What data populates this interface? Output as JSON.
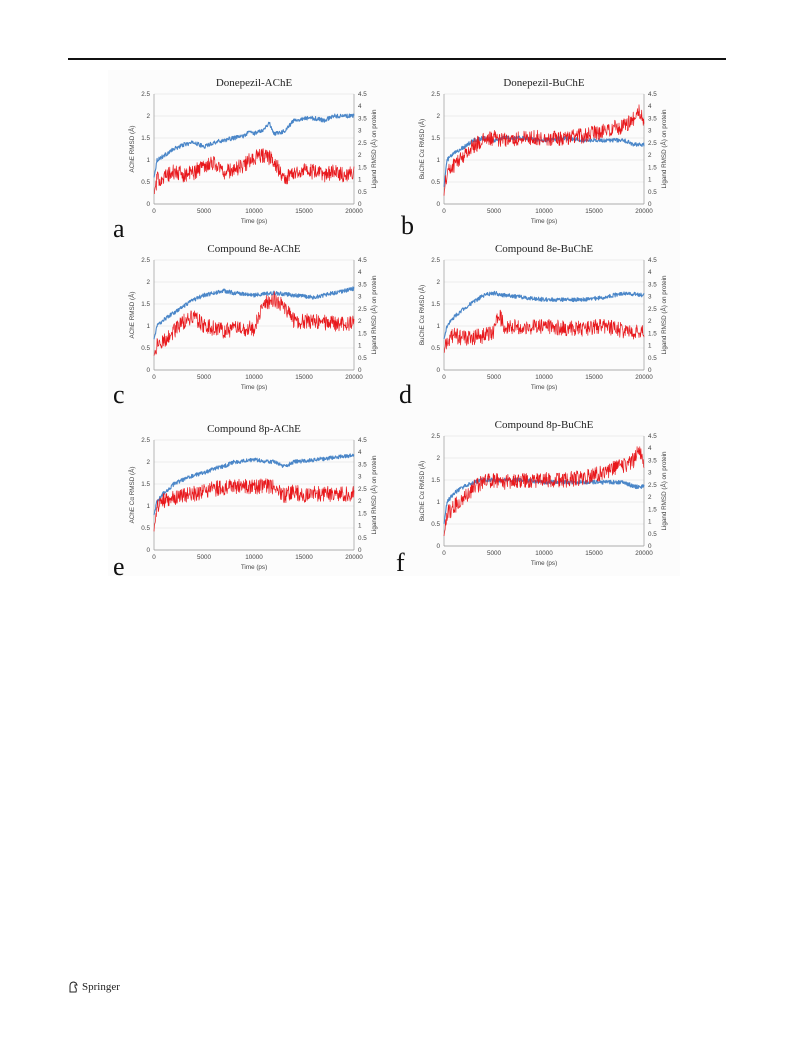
{
  "footer": {
    "publisher": "Springer",
    "logo_icon": "springer-horse-icon"
  },
  "series_colors": {
    "protein": "#4a86c8",
    "ligand": "#e8181c"
  },
  "chart_data": [
    {
      "type": "line",
      "panel": "a",
      "title": "Donepezil-AChE",
      "xlabel": "Time (ps)",
      "ylabel": "AChE RMSD (Å)",
      "y2label": "Ligand RMSD (Å) on protein",
      "xlim": [
        0,
        20000
      ],
      "ylim": [
        0,
        2.5
      ],
      "y2lim": [
        0,
        4.5
      ],
      "xticks": [
        "0",
        "5000",
        "10000",
        "15000",
        "20000"
      ],
      "yticks": [
        "0",
        "0.5",
        "1",
        "1.5",
        "2",
        "2.5"
      ],
      "y2ticks": [
        "0",
        "0.5",
        "1",
        "1.5",
        "2",
        "2.5",
        "3",
        "3.5",
        "4",
        "4.5"
      ],
      "grid": true,
      "series": [
        {
          "axis": "left",
          "color": "protein",
          "x": [
            0,
            300,
            1000,
            2000,
            3000,
            4000,
            5000,
            6000,
            7000,
            8000,
            9000,
            9600,
            10000,
            11000,
            11500,
            12000,
            13000,
            14000,
            15000,
            16000,
            17000,
            18000,
            19000,
            20000
          ],
          "y": [
            0.6,
            1.0,
            1.1,
            1.25,
            1.35,
            1.4,
            1.3,
            1.4,
            1.45,
            1.5,
            1.55,
            1.65,
            1.6,
            1.7,
            1.85,
            1.6,
            1.65,
            1.9,
            1.95,
            1.95,
            1.9,
            2.0,
            2.0,
            2.0
          ]
        },
        {
          "axis": "right",
          "color": "ligand",
          "x": [
            0,
            300,
            1000,
            2000,
            3000,
            4000,
            5000,
            6000,
            7000,
            8000,
            9000,
            10000,
            11000,
            12000,
            13000,
            14000,
            15000,
            16000,
            17000,
            18000,
            19000,
            20000
          ],
          "y": [
            0.4,
            1.0,
            1.1,
            1.3,
            1.2,
            1.3,
            1.6,
            1.7,
            1.3,
            1.4,
            1.6,
            1.9,
            2.0,
            1.8,
            1.0,
            1.3,
            1.4,
            1.3,
            1.2,
            1.3,
            1.2,
            1.3
          ]
        }
      ]
    },
    {
      "type": "line",
      "panel": "b",
      "title": "Donepezil-BuChE",
      "xlabel": "Time (ps)",
      "ylabel": "BuChE Cα RMSD (Å)",
      "y2label": "Ligand RMSD (Å) on protein",
      "xlim": [
        0,
        20000
      ],
      "ylim": [
        0,
        2.5
      ],
      "y2lim": [
        0,
        4.5
      ],
      "xticks": [
        "0",
        "5000",
        "10000",
        "15000",
        "20000"
      ],
      "yticks": [
        "0",
        "0.5",
        "1",
        "1.5",
        "2",
        "2.5"
      ],
      "y2ticks": [
        "0",
        "0.5",
        "1",
        "1.5",
        "2",
        "2.5",
        "3",
        "3.5",
        "4",
        "4.5"
      ],
      "grid": true,
      "series": [
        {
          "axis": "left",
          "color": "protein",
          "x": [
            0,
            300,
            1000,
            2000,
            3000,
            4000,
            5000,
            6000,
            8000,
            10000,
            12000,
            14000,
            16000,
            18000,
            19000,
            20000
          ],
          "y": [
            0.4,
            1.0,
            1.15,
            1.3,
            1.45,
            1.5,
            1.45,
            1.5,
            1.5,
            1.45,
            1.5,
            1.45,
            1.45,
            1.45,
            1.35,
            1.35
          ]
        },
        {
          "axis": "right",
          "color": "ligand",
          "x": [
            0,
            300,
            1000,
            2000,
            3000,
            4000,
            5000,
            6000,
            8000,
            10000,
            12000,
            14000,
            16000,
            17000,
            18000,
            19000,
            19500,
            20000
          ],
          "y": [
            0.4,
            1.3,
            1.6,
            2.0,
            2.4,
            2.6,
            2.7,
            2.6,
            2.7,
            2.7,
            2.7,
            2.8,
            3.0,
            3.1,
            3.2,
            3.5,
            3.8,
            3.4
          ]
        }
      ]
    },
    {
      "type": "line",
      "panel": "c",
      "title": "Compound 8e-AChE",
      "xlabel": "Time (ps)",
      "ylabel": "AChE RMSD (Å)",
      "y2label": "Ligand RMSD (Å) on protein",
      "xlim": [
        0,
        20000
      ],
      "ylim": [
        0,
        2.5
      ],
      "y2lim": [
        0,
        4.5
      ],
      "xticks": [
        "0",
        "5000",
        "10000",
        "15000",
        "20000"
      ],
      "yticks": [
        "0",
        "0.5",
        "1",
        "1.5",
        "2",
        "2.5"
      ],
      "y2ticks": [
        "0",
        "0.5",
        "1",
        "1.5",
        "2",
        "2.5",
        "3",
        "3.5",
        "4",
        "4.5"
      ],
      "grid": true,
      "series": [
        {
          "axis": "left",
          "color": "protein",
          "x": [
            0,
            300,
            1000,
            2000,
            3000,
            4000,
            5000,
            6000,
            7000,
            8000,
            10000,
            12000,
            14000,
            16000,
            18000,
            19000,
            20000
          ],
          "y": [
            0.7,
            1.0,
            1.15,
            1.3,
            1.45,
            1.6,
            1.7,
            1.75,
            1.8,
            1.75,
            1.7,
            1.75,
            1.7,
            1.65,
            1.75,
            1.8,
            1.85
          ]
        },
        {
          "axis": "right",
          "color": "ligand",
          "x": [
            0,
            300,
            1000,
            2000,
            3000,
            4000,
            5000,
            6000,
            7000,
            8000,
            10000,
            11000,
            12000,
            13000,
            14000,
            16000,
            18000,
            20000
          ],
          "y": [
            0.6,
            1.0,
            1.2,
            1.6,
            2.0,
            2.2,
            1.8,
            1.7,
            1.6,
            1.7,
            1.7,
            2.7,
            2.9,
            2.6,
            2.0,
            2.0,
            1.9,
            1.9
          ]
        }
      ]
    },
    {
      "type": "line",
      "panel": "d",
      "title": "Compound 8e-BuChE",
      "xlabel": "Time (ps)",
      "ylabel": "BuChE Cα RMSD (Å)",
      "y2label": "Ligand RMSD (Å) on protein",
      "xlim": [
        0,
        20000
      ],
      "ylim": [
        0,
        2.5
      ],
      "y2lim": [
        0,
        4.5
      ],
      "xticks": [
        "0",
        "5000",
        "10000",
        "15000",
        "20000"
      ],
      "yticks": [
        "0",
        "0.5",
        "1",
        "1.5",
        "2",
        "2.5"
      ],
      "y2ticks": [
        "0",
        "0.5",
        "1",
        "1.5",
        "2",
        "2.5",
        "3",
        "3.5",
        "4",
        "4.5"
      ],
      "grid": true,
      "series": [
        {
          "axis": "left",
          "color": "protein",
          "x": [
            0,
            300,
            1000,
            2000,
            3000,
            4000,
            5000,
            6000,
            8000,
            10000,
            12000,
            14000,
            16000,
            18000,
            20000
          ],
          "y": [
            0.7,
            1.0,
            1.2,
            1.4,
            1.55,
            1.7,
            1.75,
            1.7,
            1.65,
            1.6,
            1.6,
            1.6,
            1.65,
            1.75,
            1.7
          ]
        },
        {
          "axis": "right",
          "color": "ligand",
          "x": [
            0,
            300,
            1000,
            2000,
            3000,
            4000,
            5000,
            5500,
            6000,
            7000,
            8000,
            10000,
            12000,
            14000,
            16000,
            18000,
            20000
          ],
          "y": [
            0.7,
            1.2,
            1.4,
            1.3,
            1.35,
            1.4,
            1.6,
            2.3,
            1.8,
            1.8,
            1.7,
            1.8,
            1.7,
            1.7,
            1.8,
            1.6,
            1.5
          ]
        }
      ]
    },
    {
      "type": "line",
      "panel": "e",
      "title": "Compound 8p-AChE",
      "xlabel": "Time (ps)",
      "ylabel": "AChE Cα RMSD (Å)",
      "y2label": "Ligand RMSD (Å) on protein",
      "xlim": [
        0,
        20000
      ],
      "ylim": [
        0,
        2.5
      ],
      "y2lim": [
        0,
        4.5
      ],
      "xticks": [
        "0",
        "5000",
        "10000",
        "15000",
        "20000"
      ],
      "yticks": [
        "0",
        "0.5",
        "1",
        "1.5",
        "2",
        "2.5"
      ],
      "y2ticks": [
        "0",
        "0.5",
        "1",
        "1.5",
        "2",
        "2.5",
        "3",
        "3.5",
        "4",
        "4.5"
      ],
      "grid": true,
      "series": [
        {
          "axis": "left",
          "color": "protein",
          "x": [
            0,
            300,
            1000,
            2000,
            3000,
            4000,
            5000,
            6000,
            7000,
            8000,
            10000,
            12000,
            13000,
            14000,
            16000,
            18000,
            20000
          ],
          "y": [
            0.8,
            1.1,
            1.3,
            1.5,
            1.6,
            1.7,
            1.75,
            1.85,
            1.9,
            2.0,
            2.05,
            2.0,
            1.9,
            2.0,
            2.05,
            2.1,
            2.15
          ]
        },
        {
          "axis": "right",
          "color": "ligand",
          "x": [
            0,
            300,
            1000,
            2000,
            3000,
            4000,
            5000,
            6000,
            8000,
            10000,
            12000,
            13000,
            14000,
            15000,
            16000,
            18000,
            20000
          ],
          "y": [
            0.8,
            1.8,
            2.0,
            2.1,
            2.2,
            2.3,
            2.4,
            2.5,
            2.6,
            2.6,
            2.6,
            2.2,
            2.4,
            2.2,
            2.3,
            2.3,
            2.3
          ]
        }
      ]
    },
    {
      "type": "line",
      "panel": "f",
      "title": "Compound 8p-BuChE",
      "xlabel": "Time (ps)",
      "ylabel": "BuChE Cα RMSD (Å)",
      "y2label": "Ligand RMSD (Å) on protein",
      "xlim": [
        0,
        20000
      ],
      "ylim": [
        0,
        2.5
      ],
      "y2lim": [
        0,
        4.5
      ],
      "xticks": [
        "0",
        "5000",
        "10000",
        "15000",
        "20000"
      ],
      "yticks": [
        "0",
        "0.5",
        "1",
        "1.5",
        "2",
        "2.5"
      ],
      "y2ticks": [
        "0",
        "0.5",
        "1",
        "1.5",
        "2",
        "2.5",
        "3",
        "3.5",
        "4",
        "4.5"
      ],
      "grid": true,
      "series": [
        {
          "axis": "left",
          "color": "protein",
          "x": [
            0,
            300,
            1000,
            2000,
            3000,
            4000,
            5000,
            6000,
            8000,
            10000,
            12000,
            14000,
            16000,
            18000,
            19000,
            20000
          ],
          "y": [
            0.5,
            1.0,
            1.2,
            1.35,
            1.45,
            1.5,
            1.5,
            1.5,
            1.5,
            1.45,
            1.45,
            1.45,
            1.45,
            1.45,
            1.35,
            1.35
          ]
        },
        {
          "axis": "right",
          "color": "ligand",
          "x": [
            0,
            300,
            1000,
            2000,
            3000,
            4000,
            5000,
            6000,
            8000,
            10000,
            12000,
            14000,
            16000,
            17000,
            18000,
            19000,
            19500,
            20000
          ],
          "y": [
            0.4,
            1.3,
            1.6,
            2.0,
            2.4,
            2.6,
            2.7,
            2.6,
            2.7,
            2.7,
            2.7,
            2.8,
            3.0,
            3.2,
            3.3,
            3.5,
            3.9,
            3.4
          ]
        }
      ]
    }
  ]
}
